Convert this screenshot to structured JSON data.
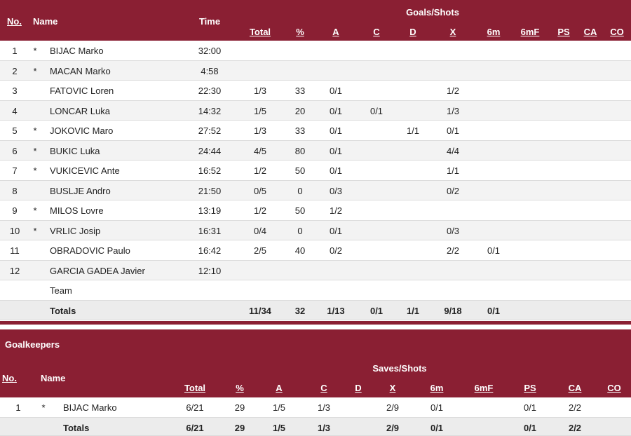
{
  "players_table": {
    "header": {
      "no": "No.",
      "name": "Name",
      "time": "Time",
      "group": "Goals/Shots",
      "cols": [
        "Total",
        "%",
        "A",
        "C",
        "D",
        "X",
        "6m",
        "6mF",
        "PS",
        "CA",
        "CO"
      ]
    },
    "rows": [
      {
        "no": "1",
        "star": "*",
        "name": "BIJAC Marko",
        "time": "32:00",
        "vals": [
          "",
          "",
          "",
          "",
          "",
          "",
          "",
          "",
          "",
          "",
          ""
        ]
      },
      {
        "no": "2",
        "star": "*",
        "name": "MACAN Marko",
        "time": "4:58",
        "vals": [
          "",
          "",
          "",
          "",
          "",
          "",
          "",
          "",
          "",
          "",
          ""
        ]
      },
      {
        "no": "3",
        "star": "",
        "name": "FATOVIC Loren",
        "time": "22:30",
        "vals": [
          "1/3",
          "33",
          "0/1",
          "",
          "",
          "1/2",
          "",
          "",
          "",
          "",
          ""
        ]
      },
      {
        "no": "4",
        "star": "",
        "name": "LONCAR Luka",
        "time": "14:32",
        "vals": [
          "1/5",
          "20",
          "0/1",
          "0/1",
          "",
          "1/3",
          "",
          "",
          "",
          "",
          ""
        ]
      },
      {
        "no": "5",
        "star": "*",
        "name": "JOKOVIC Maro",
        "time": "27:52",
        "vals": [
          "1/3",
          "33",
          "0/1",
          "",
          "1/1",
          "0/1",
          "",
          "",
          "",
          "",
          ""
        ]
      },
      {
        "no": "6",
        "star": "*",
        "name": "BUKIC Luka",
        "time": "24:44",
        "vals": [
          "4/5",
          "80",
          "0/1",
          "",
          "",
          "4/4",
          "",
          "",
          "",
          "",
          ""
        ]
      },
      {
        "no": "7",
        "star": "*",
        "name": "VUKICEVIC Ante",
        "time": "16:52",
        "vals": [
          "1/2",
          "50",
          "0/1",
          "",
          "",
          "1/1",
          "",
          "",
          "",
          "",
          ""
        ]
      },
      {
        "no": "8",
        "star": "",
        "name": "BUSLJE Andro",
        "time": "21:50",
        "vals": [
          "0/5",
          "0",
          "0/3",
          "",
          "",
          "0/2",
          "",
          "",
          "",
          "",
          ""
        ]
      },
      {
        "no": "9",
        "star": "*",
        "name": "MILOS Lovre",
        "time": "13:19",
        "vals": [
          "1/2",
          "50",
          "1/2",
          "",
          "",
          "",
          "",
          "",
          "",
          "",
          ""
        ]
      },
      {
        "no": "10",
        "star": "*",
        "name": "VRLIC Josip",
        "time": "16:31",
        "vals": [
          "0/4",
          "0",
          "0/1",
          "",
          "",
          "0/3",
          "",
          "",
          "",
          "",
          ""
        ]
      },
      {
        "no": "11",
        "star": "",
        "name": "OBRADOVIC Paulo",
        "time": "16:42",
        "vals": [
          "2/5",
          "40",
          "0/2",
          "",
          "",
          "2/2",
          "0/1",
          "",
          "",
          "",
          ""
        ]
      },
      {
        "no": "12",
        "star": "",
        "name": "GARCIA GADEA Javier",
        "time": "12:10",
        "vals": [
          "",
          "",
          "",
          "",
          "",
          "",
          "",
          "",
          "",
          "",
          ""
        ]
      },
      {
        "no": "",
        "star": "",
        "name": "Team",
        "time": "",
        "vals": [
          "",
          "",
          "",
          "",
          "",
          "",
          "",
          "",
          "",
          "",
          ""
        ]
      }
    ],
    "totals": {
      "label": "Totals",
      "vals": [
        "11/34",
        "32",
        "1/13",
        "0/1",
        "1/1",
        "9/18",
        "0/1",
        "",
        "",
        "",
        ""
      ]
    }
  },
  "goalkeepers_table": {
    "title": "Goalkeepers",
    "header": {
      "no": "No.",
      "name": "Name",
      "group": "Saves/Shots",
      "cols": [
        "Total",
        "%",
        "A",
        "C",
        "D",
        "X",
        "6m",
        "6mF",
        "PS",
        "CA",
        "CO"
      ]
    },
    "rows": [
      {
        "no": "1",
        "star": "*",
        "name": "BIJAC Marko",
        "vals": [
          "6/21",
          "29",
          "1/5",
          "1/3",
          "",
          "2/9",
          "0/1",
          "",
          "0/1",
          "2/2",
          ""
        ]
      }
    ],
    "totals": {
      "label": "Totals",
      "vals": [
        "6/21",
        "29",
        "1/5",
        "1/3",
        "",
        "2/9",
        "0/1",
        "",
        "0/1",
        "2/2",
        ""
      ]
    }
  },
  "colors": {
    "header_bg": "#8a1f33",
    "header_text": "#ffffff",
    "row_alt": "#f3f3f3",
    "totals_bg": "#ececec"
  }
}
